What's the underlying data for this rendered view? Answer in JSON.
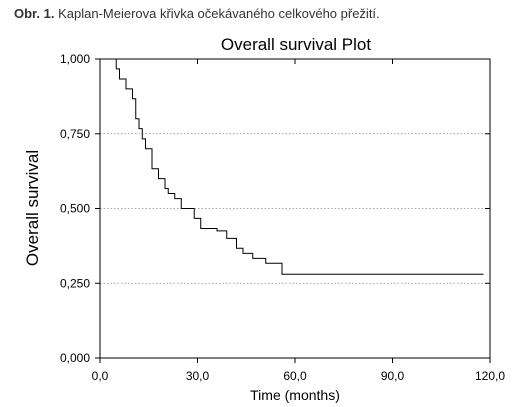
{
  "caption": {
    "label": "Obr. 1.",
    "text": "Kaplan-Meierova křivka očekávaného celkového přežití."
  },
  "chart_data": {
    "type": "line",
    "step": true,
    "title": "Overall survival Plot",
    "xlabel": "Time (months)",
    "ylabel": "Overall survival",
    "xlim": [
      0,
      120
    ],
    "ylim": [
      0,
      1
    ],
    "xticks": [
      0,
      30,
      60,
      90,
      120
    ],
    "xtick_labels": [
      "0,0",
      "30,0",
      "60,0",
      "90,0",
      "120,0"
    ],
    "yticks": [
      0,
      0.25,
      0.5,
      0.75,
      1
    ],
    "ytick_labels": [
      "0,000",
      "0,250",
      "0,500",
      "0,750",
      "1,000"
    ],
    "grid": "horizontal-dotted",
    "series": [
      {
        "color": "#000000",
        "x": [
          0,
          5,
          6,
          8,
          10,
          11,
          12,
          13,
          14,
          16,
          18,
          20,
          21,
          23,
          25,
          27,
          29,
          31,
          33,
          36,
          39,
          42,
          44,
          47,
          51,
          56,
          118
        ],
        "y": [
          1.0,
          0.967,
          0.933,
          0.9,
          0.867,
          0.8,
          0.767,
          0.733,
          0.7,
          0.633,
          0.6,
          0.567,
          0.55,
          0.533,
          0.5,
          0.5,
          0.467,
          0.433,
          0.433,
          0.425,
          0.4,
          0.367,
          0.35,
          0.333,
          0.317,
          0.28,
          0.28
        ]
      }
    ]
  }
}
